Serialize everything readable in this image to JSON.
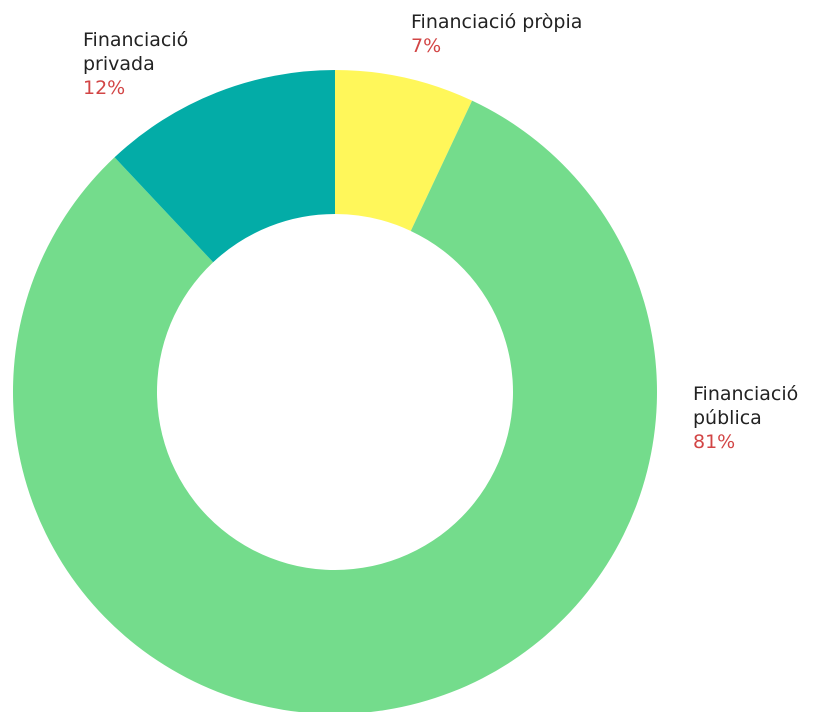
{
  "chart_data": {
    "type": "donut",
    "categories": [
      "Financiació pròpia",
      "Financiació pública",
      "Financiació privada"
    ],
    "values": [
      7,
      81,
      12
    ],
    "value_labels": [
      "7%",
      "81%",
      "12%"
    ],
    "colors": [
      "#fff75a",
      "#74dc8c",
      "#03aca7"
    ]
  }
}
